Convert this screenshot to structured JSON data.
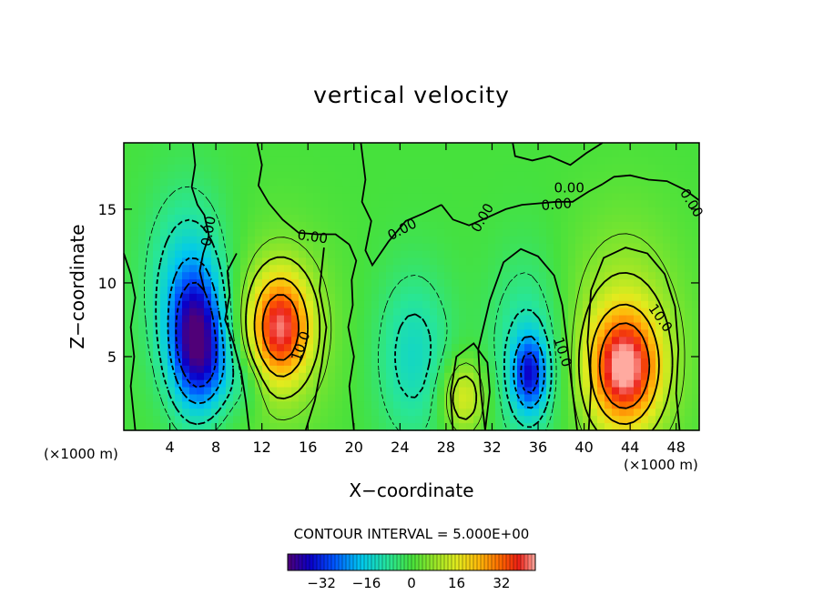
{
  "chart_data": {
    "type": "heatmap",
    "title": "vertical velocity",
    "xlabel": "X−coordinate",
    "ylabel": "Z−coordinate",
    "x_unit_left": "(×1000 m)",
    "x_unit_right": "(×1000 m)",
    "xlim": [
      0,
      50
    ],
    "ylim": [
      0,
      19.5
    ],
    "x_ticks": [
      4,
      8,
      12,
      16,
      20,
      24,
      28,
      32,
      36,
      40,
      44,
      48
    ],
    "x_tick_labels": [
      "4",
      "8",
      "12",
      "16",
      "20",
      "24",
      "28",
      "32",
      "36",
      "40",
      "44",
      "48"
    ],
    "y_ticks": [
      5,
      10,
      15
    ],
    "y_tick_labels": [
      "5",
      "10",
      "15"
    ],
    "contour_interval_text": "CONTOUR INTERVAL = 5.000E+00",
    "contour_labels": [
      "0.00",
      "0.00",
      "0.00",
      "0.00",
      "0.00",
      "0.00",
      "0.00",
      "10.0",
      "10.0",
      "10.0"
    ],
    "colorbar": {
      "range": [
        -44,
        44
      ],
      "ticks": [
        -32,
        -16,
        0,
        16,
        32
      ],
      "tick_labels": [
        "−32",
        "−16",
        "0",
        "16",
        "32"
      ]
    },
    "field_extrema": [
      {
        "x": 6.3,
        "z": 6.0,
        "value": -38,
        "sx": 1.6,
        "sz": 3.2
      },
      {
        "x": 5.5,
        "z": 10.0,
        "value": -14,
        "sx": 2.5,
        "sz": 4.5
      },
      {
        "x": 8.5,
        "z": 4.0,
        "value": -9,
        "sx": 1.5,
        "sz": 2.0
      },
      {
        "x": 13.6,
        "z": 7.0,
        "value": 33,
        "sx": 1.7,
        "sz": 2.4
      },
      {
        "x": 13.6,
        "z": 6.8,
        "value": 10,
        "sx": 3.2,
        "sz": 4.5
      },
      {
        "x": 25.2,
        "z": 5.0,
        "value": -13,
        "sx": 2.3,
        "sz": 4.0
      },
      {
        "x": 29.5,
        "z": 2.3,
        "value": 17,
        "sx": 1.4,
        "sz": 1.8
      },
      {
        "x": 35.3,
        "z": 3.8,
        "value": -27,
        "sx": 1.0,
        "sz": 1.8
      },
      {
        "x": 35.0,
        "z": 5.0,
        "value": -12,
        "sx": 2.2,
        "sz": 4.5
      },
      {
        "x": 43.5,
        "z": 4.2,
        "value": 37,
        "sx": 2.0,
        "sz": 2.6
      },
      {
        "x": 43.5,
        "z": 6.0,
        "value": 12,
        "sx": 3.5,
        "sz": 5.5
      },
      {
        "x": 11.0,
        "z": 3.0,
        "value": -6,
        "sx": 1.0,
        "sz": 1.5
      }
    ]
  }
}
